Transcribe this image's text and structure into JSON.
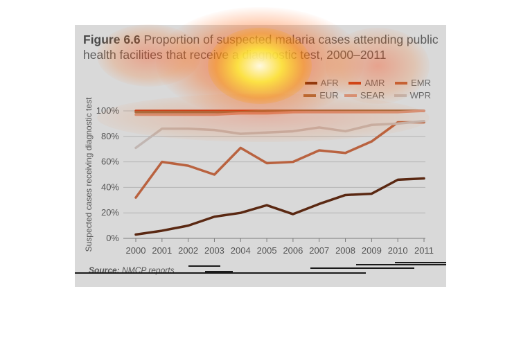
{
  "figure": {
    "title_lead": "Figure 6.6",
    "title_text": "Proportion of suspected malaria cases attending public health facilities that receive a diagnostic test, 2000–2011",
    "source_label": "Source:",
    "source_text": "NMCP reports"
  },
  "chart_data": {
    "type": "line",
    "title": "",
    "xlabel": "",
    "ylabel": "Suspected cases receiving diagnostic test",
    "x": [
      "2000",
      "2001",
      "2002",
      "2003",
      "2004",
      "2005",
      "2006",
      "2007",
      "2008",
      "2009",
      "2010",
      "2011"
    ],
    "ylim": [
      0,
      100
    ],
    "yticks": [
      "0%",
      "20%",
      "40%",
      "60%",
      "80%",
      "100%"
    ],
    "grid": true,
    "legend_position": "top-right",
    "series": [
      {
        "name": "AFR",
        "color": "#5a2812",
        "values": [
          3,
          6,
          10,
          17,
          20,
          26,
          19,
          27,
          34,
          35,
          46,
          47
        ]
      },
      {
        "name": "AMR",
        "color": "#c43e1c",
        "values": [
          100,
          100,
          100,
          100,
          100,
          100,
          100,
          100,
          100,
          100,
          100,
          100
        ]
      },
      {
        "name": "EMR",
        "color": "#b9623f",
        "values": [
          32,
          60,
          57,
          50,
          71,
          59,
          60,
          69,
          67,
          76,
          91,
          91
        ]
      },
      {
        "name": "EUR",
        "color": "#a26c42",
        "values": [
          99,
          99,
          99,
          99,
          99,
          100,
          100,
          100,
          100,
          100,
          100,
          100
        ]
      },
      {
        "name": "SEAR",
        "color": "#d5927a",
        "values": [
          97,
          97,
          97,
          97,
          98,
          98,
          99,
          99,
          99,
          99,
          99,
          100
        ]
      },
      {
        "name": "WPR",
        "color": "#c1b6b2",
        "values": [
          71,
          86,
          86,
          85,
          82,
          83,
          84,
          87,
          84,
          89,
          90,
          92
        ]
      }
    ]
  }
}
